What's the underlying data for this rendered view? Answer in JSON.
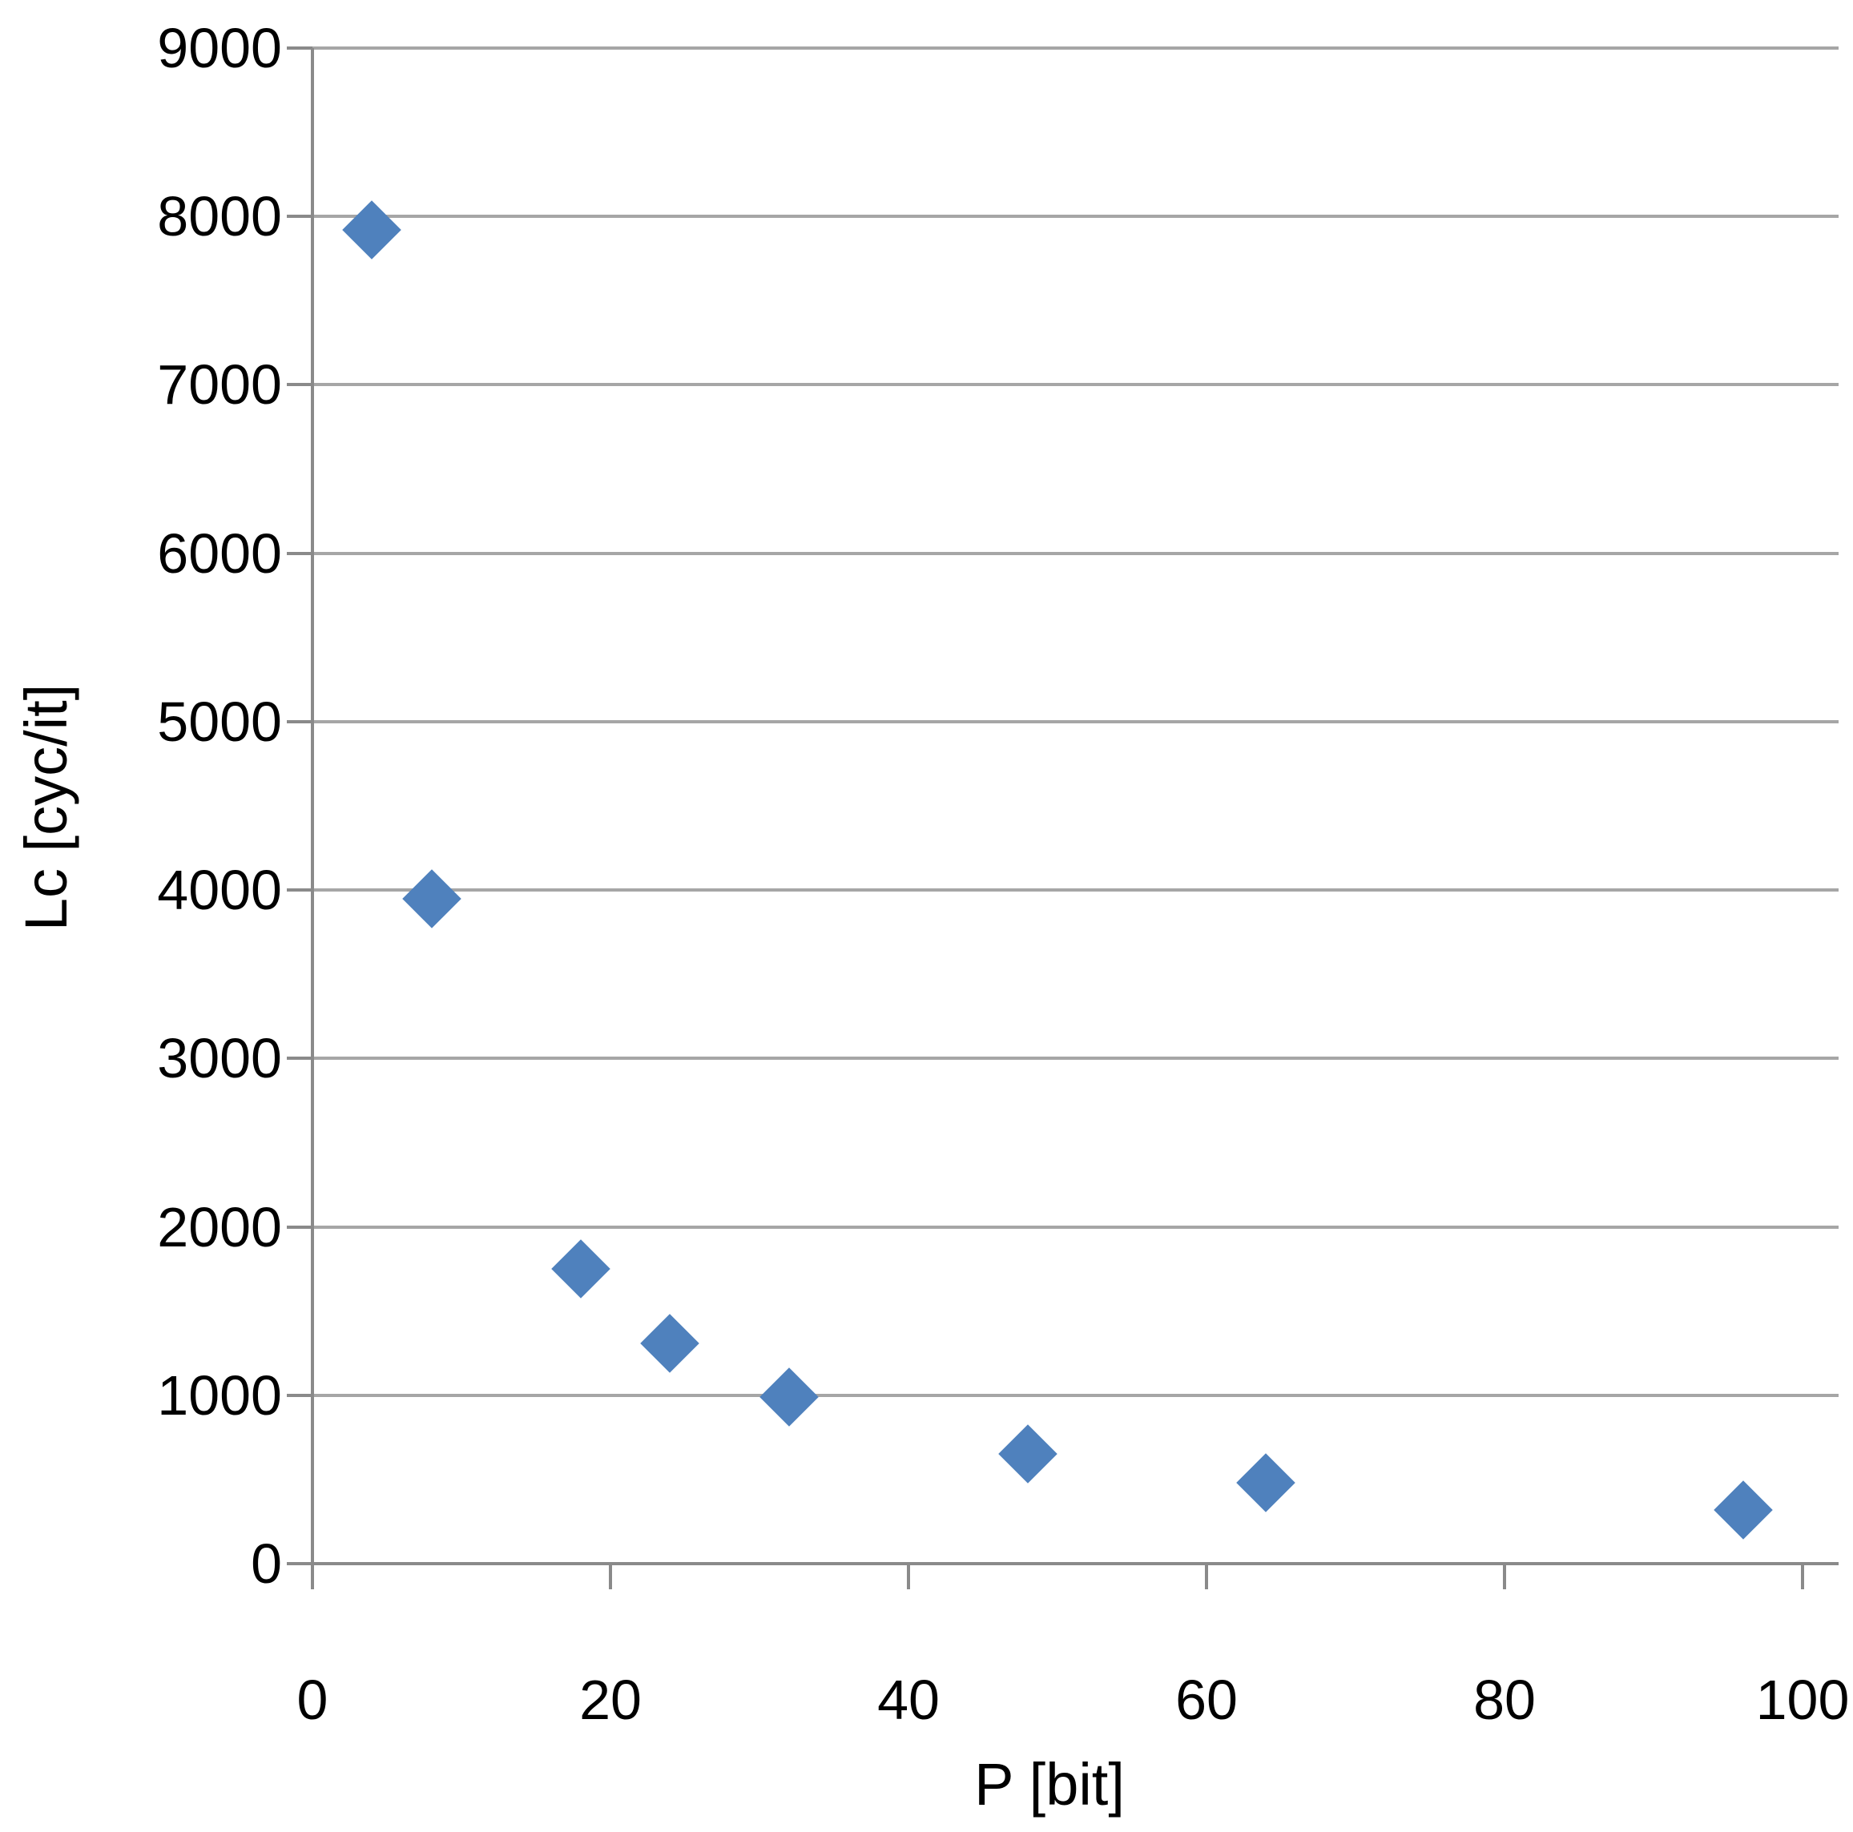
{
  "chart_data": {
    "type": "scatter",
    "title": "",
    "xlabel": "P [bit]",
    "ylabel": "Lc [cyc/it]",
    "series": [
      {
        "name": "Lc",
        "points": [
          {
            "x": 4,
            "y": 7920
          },
          {
            "x": 8,
            "y": 3950
          },
          {
            "x": 18,
            "y": 1750
          },
          {
            "x": 24,
            "y": 1310
          },
          {
            "x": 32,
            "y": 990
          },
          {
            "x": 48,
            "y": 650
          },
          {
            "x": 64,
            "y": 480
          },
          {
            "x": 96,
            "y": 320
          }
        ]
      }
    ],
    "xlim": [
      0,
      100
    ],
    "ylim": [
      0,
      9000
    ],
    "x_ticks": [
      0,
      20,
      40,
      60,
      80,
      100
    ],
    "y_ticks": [
      0,
      1000,
      2000,
      3000,
      4000,
      5000,
      6000,
      7000,
      8000,
      9000
    ],
    "grid": "horizontal-only",
    "legend": "none",
    "marker": {
      "shape": "diamond",
      "color": "#4f81bd"
    },
    "colors": {
      "gridline": "#a6a6a6",
      "axis": "#8a8a8a",
      "text": "#000000",
      "background": "#ffffff"
    }
  }
}
